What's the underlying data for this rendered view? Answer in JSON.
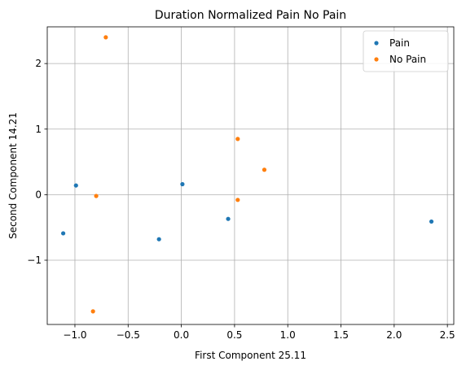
{
  "chart_data": {
    "type": "scatter",
    "title": "Duration Normalized Pain No Pain",
    "xlabel": "First Component 25.11",
    "ylabel": "Second Component 14.21",
    "xlim": [
      -1.26,
      2.56
    ],
    "ylim": [
      -1.98,
      2.56
    ],
    "xticks": [
      -1.0,
      -0.5,
      0.0,
      0.5,
      1.0,
      1.5,
      2.0,
      2.5
    ],
    "xtick_labels": [
      "−1.0",
      "−0.5",
      "0.0",
      "0.5",
      "1.0",
      "1.5",
      "2.0",
      "2.5"
    ],
    "yticks": [
      -1,
      0,
      1,
      2
    ],
    "ytick_labels": [
      "−1",
      "0",
      "1",
      "2"
    ],
    "grid": true,
    "legend_position": "top-right",
    "series": [
      {
        "name": "Pain",
        "color": "#1f77b4",
        "points": [
          {
            "x": -1.11,
            "y": -0.59
          },
          {
            "x": -0.99,
            "y": 0.14
          },
          {
            "x": -0.21,
            "y": -0.68
          },
          {
            "x": 0.01,
            "y": 0.16
          },
          {
            "x": 0.44,
            "y": -0.37
          },
          {
            "x": 2.35,
            "y": -0.41
          }
        ]
      },
      {
        "name": "No Pain",
        "color": "#ff7f0e",
        "points": [
          {
            "x": -0.71,
            "y": 2.4
          },
          {
            "x": -0.8,
            "y": -0.02
          },
          {
            "x": -0.83,
            "y": -1.78
          },
          {
            "x": 0.53,
            "y": 0.85
          },
          {
            "x": 0.53,
            "y": -0.08
          },
          {
            "x": 0.78,
            "y": 0.38
          }
        ]
      }
    ]
  }
}
